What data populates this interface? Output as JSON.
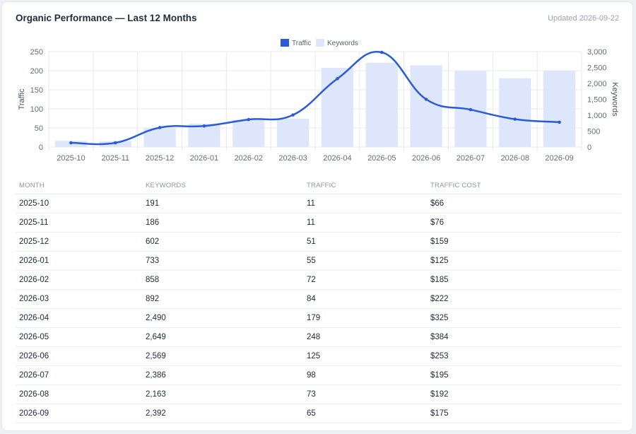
{
  "header": {
    "title": "Organic Performance — Last 12 Months",
    "updated": "Updated 2026-09-22"
  },
  "colors": {
    "traffic_line": "#2a5bd7",
    "keywords_bar": "#dde6fa",
    "grid": "#e6e8eb"
  },
  "chart_data": {
    "type": "bar",
    "categories": [
      "2025-10",
      "2025-11",
      "2025-12",
      "2026-01",
      "2026-02",
      "2026-03",
      "2026-04",
      "2026-05",
      "2026-06",
      "2026-07",
      "2026-08",
      "2026-09"
    ],
    "series": [
      {
        "name": "Traffic",
        "kind": "line",
        "axis": "left",
        "values": [
          11,
          11,
          51,
          55,
          72,
          84,
          179,
          248,
          125,
          98,
          73,
          65
        ]
      },
      {
        "name": "Keywords",
        "kind": "bar",
        "axis": "right",
        "values": [
          191,
          186,
          602,
          733,
          858,
          892,
          2490,
          2649,
          2569,
          2386,
          2163,
          2392
        ]
      }
    ],
    "ylabel": "Traffic",
    "ylabel_right": "Keywords",
    "ylim": [
      0,
      250
    ],
    "ylim_right": [
      0,
      3000
    ],
    "yticks": [
      "0",
      "50",
      "100",
      "150",
      "200",
      "250"
    ],
    "yticks_right": [
      "0",
      "500",
      "1,000",
      "1,500",
      "2,000",
      "2,500",
      "3,000"
    ],
    "legend_position": "top",
    "grid": true
  },
  "table": {
    "headers": [
      "MONTH",
      "KEYWORDS",
      "TRAFFIC",
      "TRAFFIC COST"
    ],
    "rows": [
      [
        "2025-10",
        "191",
        "11",
        "$66"
      ],
      [
        "2025-11",
        "186",
        "11",
        "$76"
      ],
      [
        "2025-12",
        "602",
        "51",
        "$159"
      ],
      [
        "2026-01",
        "733",
        "55",
        "$125"
      ],
      [
        "2026-02",
        "858",
        "72",
        "$185"
      ],
      [
        "2026-03",
        "892",
        "84",
        "$222"
      ],
      [
        "2026-04",
        "2,490",
        "179",
        "$325"
      ],
      [
        "2026-05",
        "2,649",
        "248",
        "$384"
      ],
      [
        "2026-06",
        "2,569",
        "125",
        "$253"
      ],
      [
        "2026-07",
        "2,386",
        "98",
        "$195"
      ],
      [
        "2026-08",
        "2,163",
        "73",
        "$192"
      ],
      [
        "2026-09",
        "2,392",
        "65",
        "$175"
      ]
    ]
  }
}
